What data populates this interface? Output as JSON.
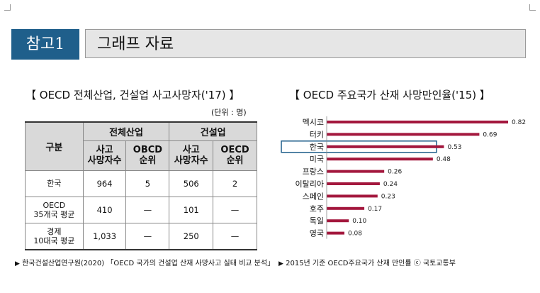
{
  "header": {
    "ref_label": "참고1",
    "title": "그래프 자료"
  },
  "left": {
    "title": "【 OECD 전체산업, 건설업 사고사망자('17) 】",
    "unit": "(단위 : 명)",
    "table": {
      "group_header": "구분",
      "col_groups": [
        "전체산업",
        "건설업"
      ],
      "sub_cols": [
        "사고\n사망자수",
        "OBCD\n순위",
        "사고\n사망자수",
        "OECD\n순위"
      ],
      "rows": [
        {
          "label": "한국",
          "cells": [
            "964",
            "5",
            "506",
            "2"
          ]
        },
        {
          "label": "OECD\n35개국 평균",
          "cells": [
            "410",
            "—",
            "101",
            "—"
          ]
        },
        {
          "label": "경제\n10대국 평균",
          "cells": [
            "1,033",
            "—",
            "250",
            "—"
          ]
        }
      ]
    },
    "footnote": "한국건설산업연구원(2020) 「OECD 국가의 건설업 산재 사망사고 실태 비교 분석」"
  },
  "right": {
    "title": "【 OECD 주요국가 산재 사망만인율('15) 】",
    "footnote": "2015년 기준 OECD주요국가 산재 만인률 ⓒ 국토교통부"
  },
  "colors": {
    "ref_box": "#1f5f8b",
    "bar": "#a3173d",
    "highlight": "#1f5f8b"
  },
  "chart_data": {
    "type": "bar",
    "orientation": "horizontal",
    "categories": [
      "멕시코",
      "터키",
      "한국",
      "미국",
      "프랑스",
      "이탈리아",
      "스페인",
      "호주",
      "독일",
      "영국"
    ],
    "values": [
      0.82,
      0.69,
      0.53,
      0.48,
      0.26,
      0.24,
      0.23,
      0.17,
      0.1,
      0.08
    ],
    "value_labels": [
      "0.82",
      "0.69",
      "0.53",
      "0.48",
      "0.26",
      "0.24",
      "0.23",
      "0.17",
      "0.10",
      "0.08"
    ],
    "highlighted_category": "한국",
    "xlim": [
      0,
      0.82
    ],
    "grid": false
  }
}
